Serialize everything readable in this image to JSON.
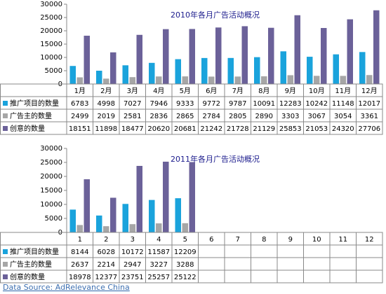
{
  "chart_data": [
    {
      "type": "bar",
      "title": "2010年各月广告活动概况",
      "categories": [
        "1月",
        "2月",
        "3月",
        "4月",
        "5月",
        "6月",
        "7月",
        "8月",
        "9月",
        "10月",
        "11月",
        "12月"
      ],
      "series": [
        {
          "name": "推广项目的数量",
          "color": "#1aa3dc",
          "values": [
            6783,
            4998,
            7027,
            7946,
            9333,
            9772,
            9787,
            10091,
            12283,
            10242,
            11148,
            12017
          ]
        },
        {
          "name": "广告主的数量",
          "color": "#a6a6a6",
          "values": [
            2499,
            2019,
            2581,
            2836,
            2865,
            2784,
            2805,
            2890,
            3303,
            3067,
            3054,
            3361
          ]
        },
        {
          "name": "创意的数量",
          "color": "#6b6199",
          "values": [
            18151,
            11898,
            18477,
            20620,
            20681,
            21242,
            21728,
            21129,
            25853,
            21053,
            24320,
            27706
          ]
        }
      ],
      "ylim": [
        0,
        30000
      ],
      "yticks": [
        0,
        5000,
        10000,
        15000,
        20000,
        25000,
        30000
      ]
    },
    {
      "type": "bar",
      "title": "2011年各月广告活动概况",
      "categories": [
        "1",
        "2",
        "3",
        "4",
        "5",
        "6",
        "7",
        "8",
        "9",
        "10",
        "11",
        "12"
      ],
      "series": [
        {
          "name": "推广项目的数量",
          "color": "#1aa3dc",
          "values": [
            8144,
            6028,
            10172,
            11587,
            12209,
            null,
            null,
            null,
            null,
            null,
            null,
            null
          ]
        },
        {
          "name": "广告主的数量",
          "color": "#a6a6a6",
          "values": [
            2637,
            2214,
            2947,
            3227,
            3288,
            null,
            null,
            null,
            null,
            null,
            null,
            null
          ]
        },
        {
          "name": "创意的数量",
          "color": "#6b6199",
          "values": [
            18978,
            12377,
            23751,
            25257,
            25122,
            null,
            null,
            null,
            null,
            null,
            null,
            null
          ]
        }
      ],
      "ylim": [
        0,
        30000
      ],
      "yticks": [
        0,
        5000,
        10000,
        15000,
        20000,
        25000,
        30000
      ]
    }
  ],
  "source": "Data Source: AdRelevance China"
}
